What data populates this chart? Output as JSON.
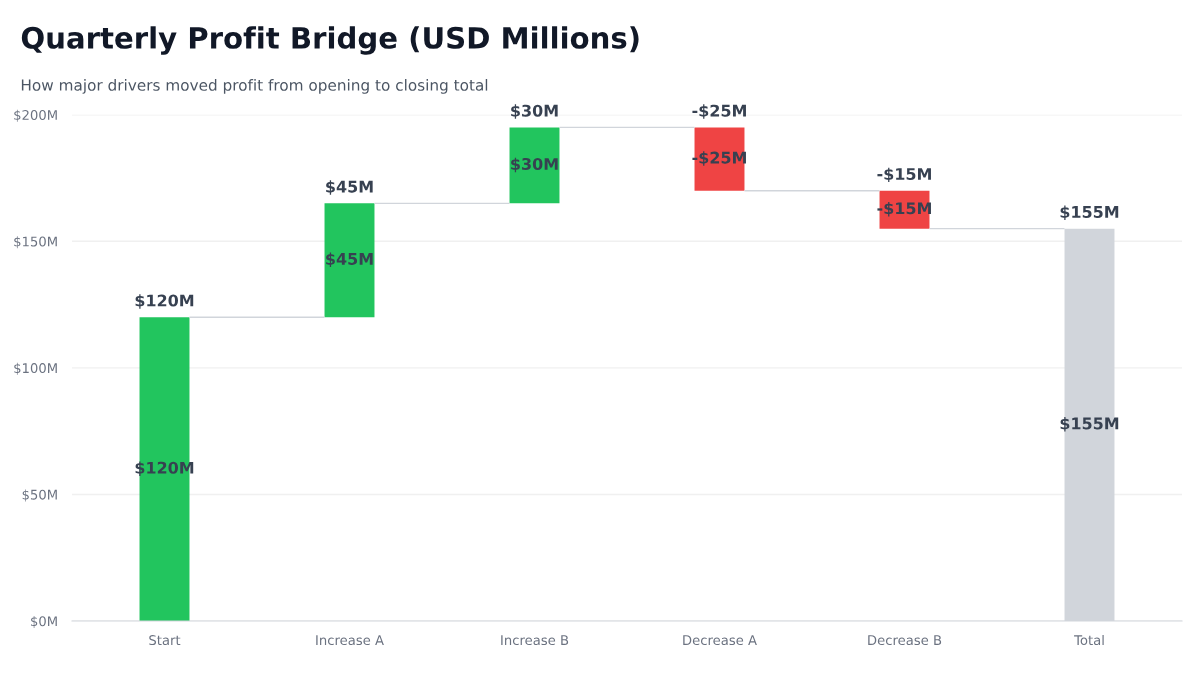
{
  "chart_data": {
    "type": "bar",
    "title": "Quarterly Profit Bridge (USD Millions)",
    "subtitle": "How major drivers moved profit from opening to closing total",
    "categories": [
      "Start",
      "Increase A",
      "Increase B",
      "Decrease A",
      "Decrease B",
      "Total"
    ],
    "values": [
      120,
      45,
      30,
      -25,
      -15,
      155
    ],
    "base": [
      0,
      120,
      165,
      195,
      170,
      0
    ],
    "colors": [
      "#22c55e",
      "#22c55e",
      "#22c55e",
      "#ef4444",
      "#ef4444",
      "#d1d5db"
    ],
    "value_labels": [
      "$120M",
      "$45M",
      "$30M",
      "-$25M",
      "-$15M",
      "$155M"
    ],
    "ylim": [
      0,
      200
    ],
    "yticks": [
      {
        "value": 0,
        "label": "$0M"
      },
      {
        "value": 50,
        "label": "$50M"
      },
      {
        "value": 100,
        "label": "$100M"
      },
      {
        "value": 150,
        "label": "$150M"
      },
      {
        "value": 200,
        "label": "$200M"
      }
    ],
    "grid": "y",
    "legend": false
  }
}
